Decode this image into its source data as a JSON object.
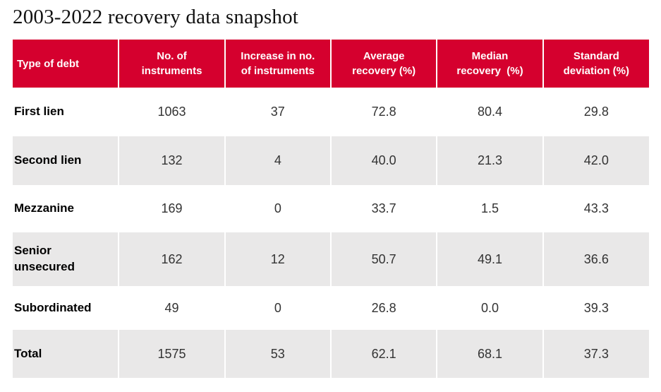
{
  "title": "2003-2022 recovery data snapshot",
  "colors": {
    "header_bg": "#d5002e",
    "header_text": "#ffffff",
    "row_bg": "#ffffff",
    "row_alt_bg": "#e9e8e8",
    "divider": "#ffffff",
    "label_text": "#000000",
    "value_text": "#333333"
  },
  "table": {
    "headers": [
      "Type of debt",
      "No. of\ninstruments",
      "Increase in no.\nof instruments",
      "Average\nrecovery (%)",
      "Median\nrecovery  (%)",
      "Standard\ndeviation (%)"
    ],
    "display_rows": [
      [
        "First lien",
        "1063",
        "37",
        "72.8",
        "80.4",
        "29.8"
      ],
      [
        "Second lien",
        "132",
        "4",
        "40.0",
        "21.3",
        "42.0"
      ],
      [
        "Mezzanine",
        "169",
        "0",
        "33.7",
        "1.5",
        "43.3"
      ],
      [
        "Senior\nunsecured",
        "162",
        "12",
        "50.7",
        "49.1",
        "36.6"
      ],
      [
        "Subordinated",
        "49",
        "0",
        "26.8",
        "0.0",
        "39.3"
      ],
      [
        "Total",
        "1575",
        "53",
        "62.1",
        "68.1",
        "37.3"
      ]
    ]
  },
  "chart_data": {
    "type": "table",
    "title": "2003-2022 recovery data snapshot",
    "columns": [
      "Type of debt",
      "No. of instruments",
      "Increase in no. of instruments",
      "Average recovery (%)",
      "Median recovery (%)",
      "Standard deviation (%)"
    ],
    "rows": [
      {
        "type_of_debt": "First lien",
        "no_of_instruments": 1063,
        "increase_in_no_of_instruments": 37,
        "average_recovery_pct": 72.8,
        "median_recovery_pct": 80.4,
        "standard_deviation_pct": 29.8
      },
      {
        "type_of_debt": "Second lien",
        "no_of_instruments": 132,
        "increase_in_no_of_instruments": 4,
        "average_recovery_pct": 40.0,
        "median_recovery_pct": 21.3,
        "standard_deviation_pct": 42.0
      },
      {
        "type_of_debt": "Mezzanine",
        "no_of_instruments": 169,
        "increase_in_no_of_instruments": 0,
        "average_recovery_pct": 33.7,
        "median_recovery_pct": 1.5,
        "standard_deviation_pct": 43.3
      },
      {
        "type_of_debt": "Senior unsecured",
        "no_of_instruments": 162,
        "increase_in_no_of_instruments": 12,
        "average_recovery_pct": 50.7,
        "median_recovery_pct": 49.1,
        "standard_deviation_pct": 36.6
      },
      {
        "type_of_debt": "Subordinated",
        "no_of_instruments": 49,
        "increase_in_no_of_instruments": 0,
        "average_recovery_pct": 26.8,
        "median_recovery_pct": 0.0,
        "standard_deviation_pct": 39.3
      },
      {
        "type_of_debt": "Total",
        "no_of_instruments": 1575,
        "increase_in_no_of_instruments": 53,
        "average_recovery_pct": 62.1,
        "median_recovery_pct": 68.1,
        "standard_deviation_pct": 37.3
      }
    ]
  }
}
